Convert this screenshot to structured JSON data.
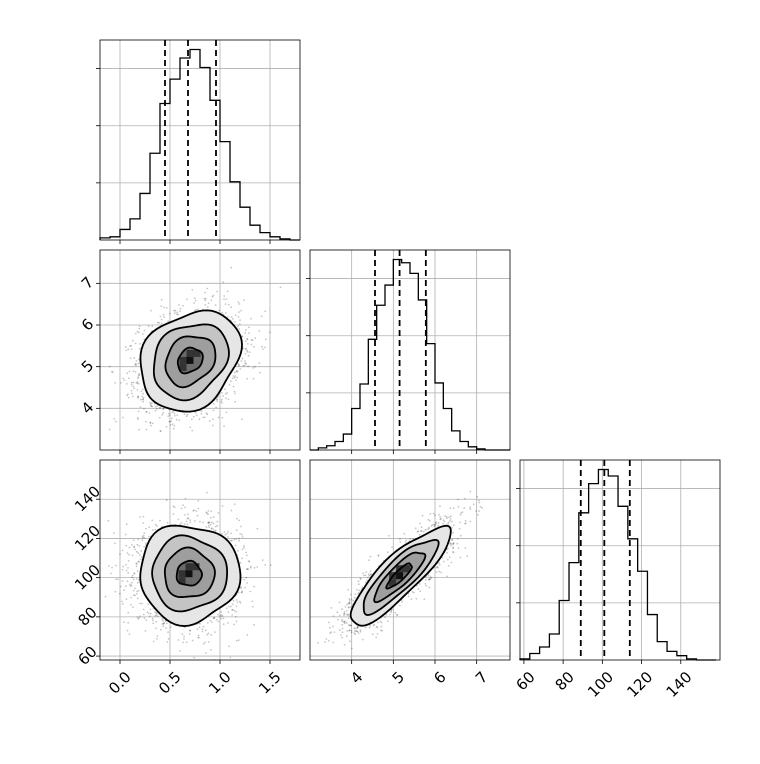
{
  "chart_data": {
    "type": "corner",
    "grid": true,
    "dimensions": [
      {
        "name": "",
        "range": [
          -0.2,
          1.8
        ],
        "ticks": [
          0.0,
          0.5,
          1.0,
          1.5
        ],
        "tick_labels": [
          "0.0",
          "0.5",
          "1.0",
          "1.5"
        ]
      },
      {
        "name": "",
        "range": [
          3.0,
          7.8
        ],
        "ticks": [
          4,
          5,
          6,
          7
        ],
        "tick_labels": [
          "4",
          "5",
          "6",
          "7"
        ]
      },
      {
        "name": "",
        "range": [
          58,
          160
        ],
        "ticks": [
          60,
          80,
          100,
          120,
          140
        ],
        "tick_labels": [
          "60",
          "80",
          "100",
          "120",
          "140"
        ]
      }
    ],
    "histograms": [
      {
        "dim": 0,
        "bin_edges": [
          -0.2,
          -0.1,
          0.0,
          0.1,
          0.2,
          0.3,
          0.4,
          0.5,
          0.6,
          0.7,
          0.8,
          0.9,
          1.0,
          1.1,
          1.2,
          1.3,
          1.4,
          1.5,
          1.6,
          1.7,
          1.8
        ],
        "counts": [
          2,
          3,
          10,
          20,
          44,
          82,
          129,
          152,
          172,
          180,
          163,
          132,
          93,
          55,
          31,
          14,
          7,
          3,
          1,
          0
        ],
        "quantiles": [
          0.45,
          0.68,
          0.96
        ]
      },
      {
        "dim": 1,
        "bin_edges": [
          3.0,
          3.2,
          3.4,
          3.6,
          3.8,
          4.0,
          4.2,
          4.4,
          4.6,
          4.8,
          5.0,
          5.2,
          5.4,
          5.6,
          5.8,
          6.0,
          6.2,
          6.4,
          6.6,
          6.8,
          7.0,
          7.2,
          7.4,
          7.6,
          7.8
        ],
        "counts": [
          0,
          2,
          4,
          8,
          15,
          39,
          62,
          104,
          136,
          155,
          179,
          176,
          166,
          141,
          100,
          63,
          39,
          18,
          8,
          3,
          1,
          0,
          0,
          0
        ],
        "quantiles": [
          4.56,
          5.15,
          5.78
        ]
      },
      {
        "dim": 2,
        "bin_edges": [
          58,
          63,
          68,
          73,
          78,
          83,
          88,
          93,
          98,
          103,
          108,
          113,
          118,
          123,
          128,
          133,
          138,
          143,
          148,
          153,
          158
        ],
        "counts": [
          1,
          6,
          12,
          24,
          55,
          90,
          136,
          163,
          176,
          170,
          142,
          112,
          82,
          42,
          17,
          8,
          4,
          1,
          0,
          0
        ],
        "quantiles": [
          89,
          101,
          114
        ]
      }
    ],
    "pairs": [
      {
        "x_dim": 0,
        "y_dim": 1,
        "mean": [
          0.7,
          5.15
        ],
        "std": [
          0.25,
          0.6
        ],
        "correlation": 0.22,
        "samples": 2600,
        "contour_levels_sigma": [
          0.5,
          1.0,
          1.5,
          2.0
        ]
      },
      {
        "x_dim": 0,
        "y_dim": 2,
        "mean": [
          0.69,
          102
        ],
        "std": [
          0.25,
          12.5
        ],
        "correlation": 0.0,
        "samples": 2600,
        "contour_levels_sigma": [
          0.5,
          1.0,
          1.5,
          2.0
        ]
      },
      {
        "x_dim": 1,
        "y_dim": 2,
        "mean": [
          5.15,
          101
        ],
        "std": [
          0.6,
          12.5
        ],
        "correlation": 0.85,
        "samples": 2600,
        "contour_levels_sigma": [
          0.5,
          1.0,
          1.5,
          2.0
        ]
      }
    ]
  }
}
